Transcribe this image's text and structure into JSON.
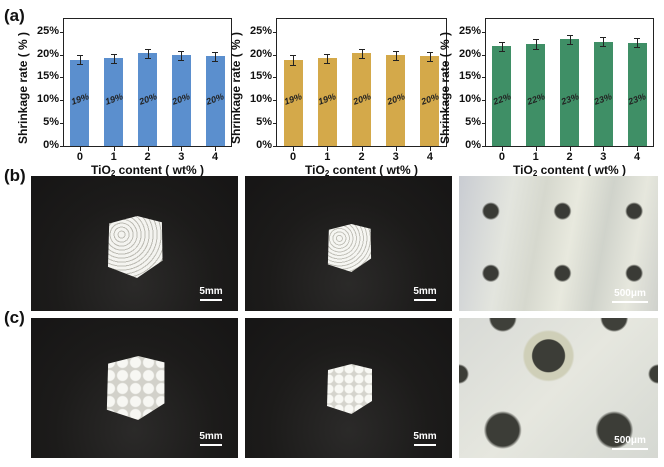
{
  "panels": {
    "a": "(a)",
    "b": "(b)",
    "c": "(c)"
  },
  "colors": {
    "series1": "#5b8fce",
    "series2": "#d4a94a",
    "series3": "#3f8f66"
  },
  "chart_data": [
    {
      "type": "bar",
      "title": "",
      "xlabel": "TiO2 content ( wt% )",
      "ylabel": "Shrinkage rate ( % )",
      "categories": [
        "0",
        "1",
        "2",
        "3",
        "4"
      ],
      "values": [
        18.9,
        19.2,
        20.3,
        19.8,
        19.6
      ],
      "errors": [
        1.0,
        1.0,
        1.0,
        1.0,
        1.0
      ],
      "data_labels": [
        "19%",
        "19%",
        "20%",
        "20%",
        "20%"
      ],
      "yticks": [
        "0%",
        "5%",
        "10%",
        "15%",
        "20%",
        "25%"
      ],
      "ylim": [
        0,
        28
      ],
      "color": "#5b8fce",
      "grid": false
    },
    {
      "type": "bar",
      "title": "",
      "xlabel": "TiO2 content ( wt% )",
      "ylabel": "Shrinkage rate ( % )",
      "categories": [
        "0",
        "1",
        "2",
        "3",
        "4"
      ],
      "values": [
        18.8,
        19.2,
        20.3,
        19.8,
        19.6
      ],
      "errors": [
        1.0,
        1.0,
        1.0,
        1.0,
        1.0
      ],
      "data_labels": [
        "19%",
        "19%",
        "20%",
        "20%",
        "20%"
      ],
      "yticks": [
        "0%",
        "5%",
        "10%",
        "15%",
        "20%",
        "25%"
      ],
      "ylim": [
        0,
        28
      ],
      "color": "#d4a94a",
      "grid": false
    },
    {
      "type": "bar",
      "title": "",
      "xlabel": "TiO2 content ( wt% )",
      "ylabel": "Shrinkage rate ( % )",
      "categories": [
        "0",
        "1",
        "2",
        "3",
        "4"
      ],
      "values": [
        21.8,
        22.3,
        23.3,
        22.8,
        22.6
      ],
      "errors": [
        1.0,
        1.0,
        1.0,
        1.0,
        1.0
      ],
      "data_labels": [
        "22%",
        "22%",
        "23%",
        "23%",
        "23%"
      ],
      "yticks": [
        "0%",
        "5%",
        "10%",
        "15%",
        "20%",
        "25%"
      ],
      "ylim": [
        0,
        28
      ],
      "color": "#3f8f66",
      "grid": false
    }
  ],
  "axis": {
    "xlabel_main": "TiO",
    "xlabel_sub": "2",
    "xlabel_rest": " content ( wt% )",
    "ylabel": "Shrinkage rate ( % )"
  },
  "photos": {
    "row_b": [
      {
        "scale_label": "5mm"
      },
      {
        "scale_label": "5mm"
      },
      {
        "scale_label": "500μm"
      }
    ],
    "row_c": [
      {
        "scale_label": "5mm"
      },
      {
        "scale_label": "5mm"
      },
      {
        "scale_label": "500μm"
      }
    ]
  }
}
